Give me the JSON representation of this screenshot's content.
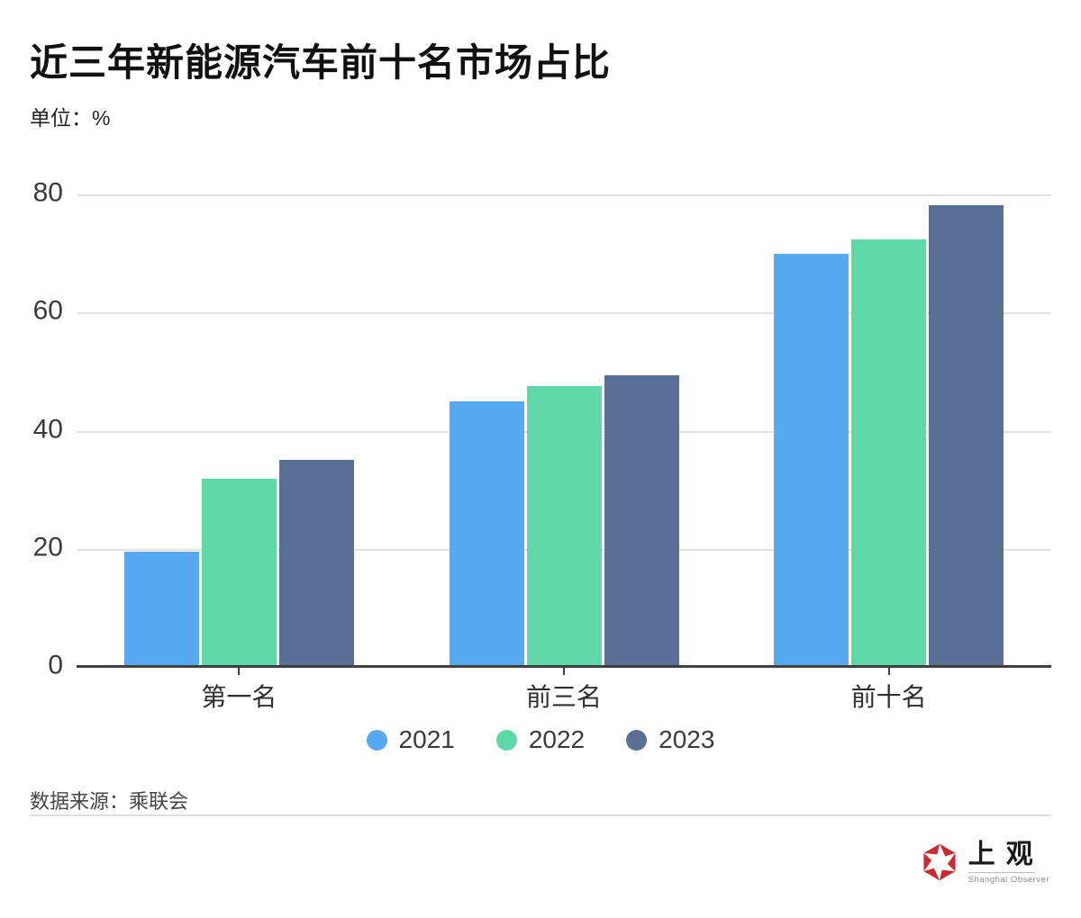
{
  "header": {
    "title": "近三年新能源汽车前十名市场占比",
    "unit": "单位：%"
  },
  "chart_data": {
    "type": "bar",
    "categories": [
      "第一名",
      "前三名",
      "前十名"
    ],
    "series": [
      {
        "name": "2021",
        "color": "#57a9f2",
        "values": [
          19.5,
          45.0,
          70.0
        ]
      },
      {
        "name": "2022",
        "color": "#5ed8a7",
        "values": [
          31.9,
          47.5,
          72.4
        ]
      },
      {
        "name": "2023",
        "color": "#5a6f96",
        "values": [
          35.1,
          49.3,
          78.2
        ]
      }
    ],
    "ylim": [
      0,
      80
    ],
    "yticks": [
      0,
      20,
      40,
      60,
      80
    ],
    "grid": true,
    "legend_position": "bottom"
  },
  "footer": {
    "source": "数据来源：乘联会"
  },
  "logo": {
    "name_cn": "上观",
    "name_en": "Shanghai Observer",
    "accent_color": "#cb2a30"
  }
}
